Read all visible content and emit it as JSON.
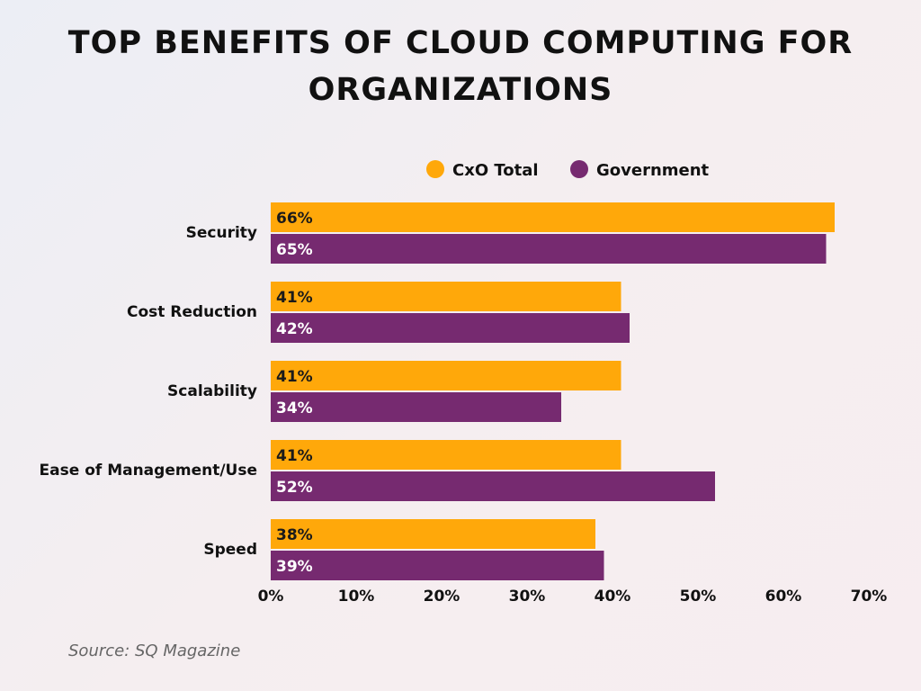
{
  "chart_data": {
    "type": "bar",
    "orientation": "horizontal",
    "title_lines": [
      "TOP BENEFITS OF CLOUD COMPUTING FOR",
      "ORGANIZATIONS"
    ],
    "categories": [
      "Security",
      "Cost Reduction",
      "Scalability",
      "Ease of Management/Use",
      "Speed"
    ],
    "series": [
      {
        "name": "CxO Total",
        "color": "#FFA80A",
        "values": [
          66,
          41,
          41,
          41,
          38
        ]
      },
      {
        "name": "Government",
        "color": "#762A70",
        "values": [
          65,
          42,
          34,
          52,
          39
        ]
      }
    ],
    "xlim": [
      0,
      70
    ],
    "xticks": [
      "0%",
      "10%",
      "20%",
      "30%",
      "40%",
      "50%",
      "60%",
      "70%"
    ],
    "legend": "top",
    "grid": false,
    "source": "Source: SQ Magazine"
  }
}
